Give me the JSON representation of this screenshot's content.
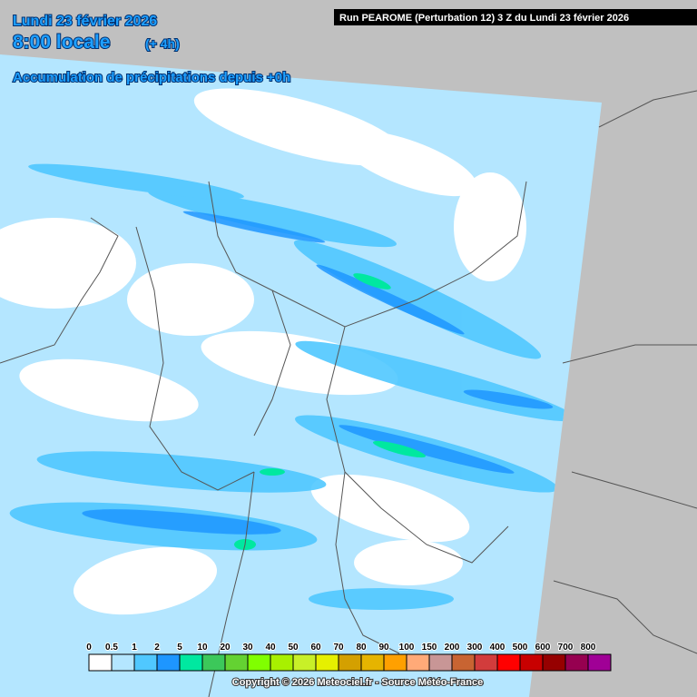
{
  "header": {
    "date": "Lundi 23 février 2026",
    "time": "8:00 locale",
    "lead": "(+ 4h)",
    "run": "Run PEAROME (Perturbation 12) 3 Z du Lundi 23 février 2026",
    "subtitle": "Accumulation de précipitations depuis +0h"
  },
  "legend": {
    "values": [
      0,
      0.5,
      1,
      2,
      5,
      10,
      20,
      30,
      40,
      50,
      60,
      70,
      80,
      90,
      100,
      150,
      200,
      300,
      400,
      500,
      600,
      700,
      800
    ],
    "colors": [
      "#ffffff",
      "#b4e6ff",
      "#50c8ff",
      "#1e96ff",
      "#00e8a0",
      "#3cc85a",
      "#64d232",
      "#80ff00",
      "#a8f000",
      "#c8f028",
      "#e6f000",
      "#d4a000",
      "#e6b400",
      "#ffa000",
      "#ffaa78",
      "#c89696",
      "#c86432",
      "#d23c3c",
      "#ff0000",
      "#c80000",
      "#960000",
      "#960050",
      "#a00096"
    ]
  },
  "footer": {
    "copyright": "Copyright © 2026 Meteociel.fr - Source Météo-France"
  }
}
